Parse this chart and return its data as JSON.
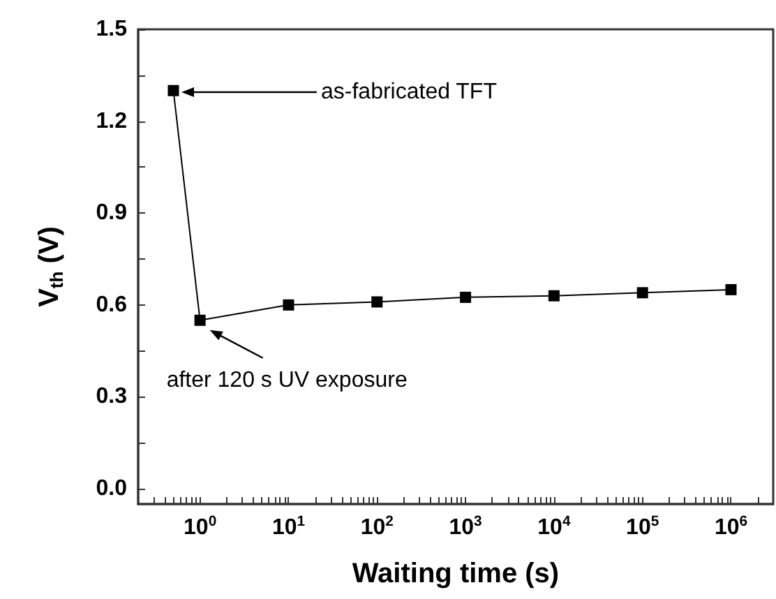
{
  "chart_data": {
    "type": "line",
    "xlabel": "Waiting time (s)",
    "ylabel": "V$_{th}$ (V)",
    "x": [
      0.5,
      1,
      10,
      100,
      1000,
      10000,
      100000,
      1000000
    ],
    "series": [
      {
        "color": "#000000",
        "values": [
          1.3,
          0.55,
          0.6,
          0.61,
          0.625,
          0.63,
          0.64,
          0.65
        ]
      }
    ],
    "log": "x",
    "marker": "square",
    "line_style": "solid",
    "grid": false,
    "xlim": [
      0.2,
      3000000
    ],
    "xticks": [
      {
        "value": 0.3,
        "label": null
      },
      {
        "value": 0.4,
        "label": null
      },
      {
        "value": 0.5,
        "label": null
      },
      {
        "value": 0.6,
        "label": null
      },
      {
        "value": 0.7,
        "label": null
      },
      {
        "value": 0.8,
        "label": null
      },
      {
        "value": 0.9,
        "label": null
      },
      {
        "value": 1,
        "label": "10$^{0}$"
      },
      {
        "value": 2,
        "label": null
      },
      {
        "value": 3,
        "label": null
      },
      {
        "value": 4,
        "label": null
      },
      {
        "value": 5,
        "label": null
      },
      {
        "value": 6,
        "label": null
      },
      {
        "value": 7,
        "label": null
      },
      {
        "value": 8,
        "label": null
      },
      {
        "value": 9,
        "label": null
      },
      {
        "value": 10,
        "label": "10$^{1}$"
      },
      {
        "value": 20,
        "label": null
      },
      {
        "value": 30,
        "label": null
      },
      {
        "value": 40,
        "label": null
      },
      {
        "value": 50,
        "label": null
      },
      {
        "value": 60,
        "label": null
      },
      {
        "value": 70,
        "label": null
      },
      {
        "value": 80,
        "label": null
      },
      {
        "value": 90,
        "label": null
      },
      {
        "value": 100,
        "label": "10$^{2}$"
      },
      {
        "value": 200,
        "label": null
      },
      {
        "value": 300,
        "label": null
      },
      {
        "value": 400,
        "label": null
      },
      {
        "value": 500,
        "label": null
      },
      {
        "value": 600,
        "label": null
      },
      {
        "value": 700,
        "label": null
      },
      {
        "value": 800,
        "label": null
      },
      {
        "value": 900,
        "label": null
      },
      {
        "value": 1000,
        "label": "10$^{3}$"
      },
      {
        "value": 2000,
        "label": null
      },
      {
        "value": 3000,
        "label": null
      },
      {
        "value": 4000,
        "label": null
      },
      {
        "value": 5000,
        "label": null
      },
      {
        "value": 6000,
        "label": null
      },
      {
        "value": 7000,
        "label": null
      },
      {
        "value": 8000,
        "label": null
      },
      {
        "value": 9000,
        "label": null
      },
      {
        "value": 10000,
        "label": "10$^{4}$"
      },
      {
        "value": 20000,
        "label": null
      },
      {
        "value": 30000,
        "label": null
      },
      {
        "value": 40000,
        "label": null
      },
      {
        "value": 50000,
        "label": null
      },
      {
        "value": 60000,
        "label": null
      },
      {
        "value": 70000,
        "label": null
      },
      {
        "value": 80000,
        "label": null
      },
      {
        "value": 90000,
        "label": null
      },
      {
        "value": 100000,
        "label": "10$^{5}$"
      },
      {
        "value": 200000,
        "label": null
      },
      {
        "value": 300000,
        "label": null
      },
      {
        "value": 400000,
        "label": null
      },
      {
        "value": 500000,
        "label": null
      },
      {
        "value": 600000,
        "label": null
      },
      {
        "value": 700000,
        "label": null
      },
      {
        "value": 800000,
        "label": null
      },
      {
        "value": 900000,
        "label": null
      },
      {
        "value": 1000000,
        "label": "10$^{6}$"
      },
      {
        "value": 2000000,
        "label": null
      }
    ],
    "ylim": [
      -0.05,
      1.5
    ],
    "yticks": [
      {
        "value": 0,
        "label": "0.0"
      },
      {
        "value": 0.15,
        "label": null
      },
      0.3,
      {
        "value": 0.45,
        "label": null
      },
      0.6,
      {
        "value": 0.75,
        "label": null
      },
      0.9,
      {
        "value": 1.05,
        "label": null
      },
      1.2,
      {
        "value": 1.35,
        "label": null
      },
      1.5
    ],
    "annotations": [
      "as-fabricated TFT",
      {
        "text": "after 120 s UV exposure",
        "x": 1,
        "y": 0.55
      }
    ]
  }
}
